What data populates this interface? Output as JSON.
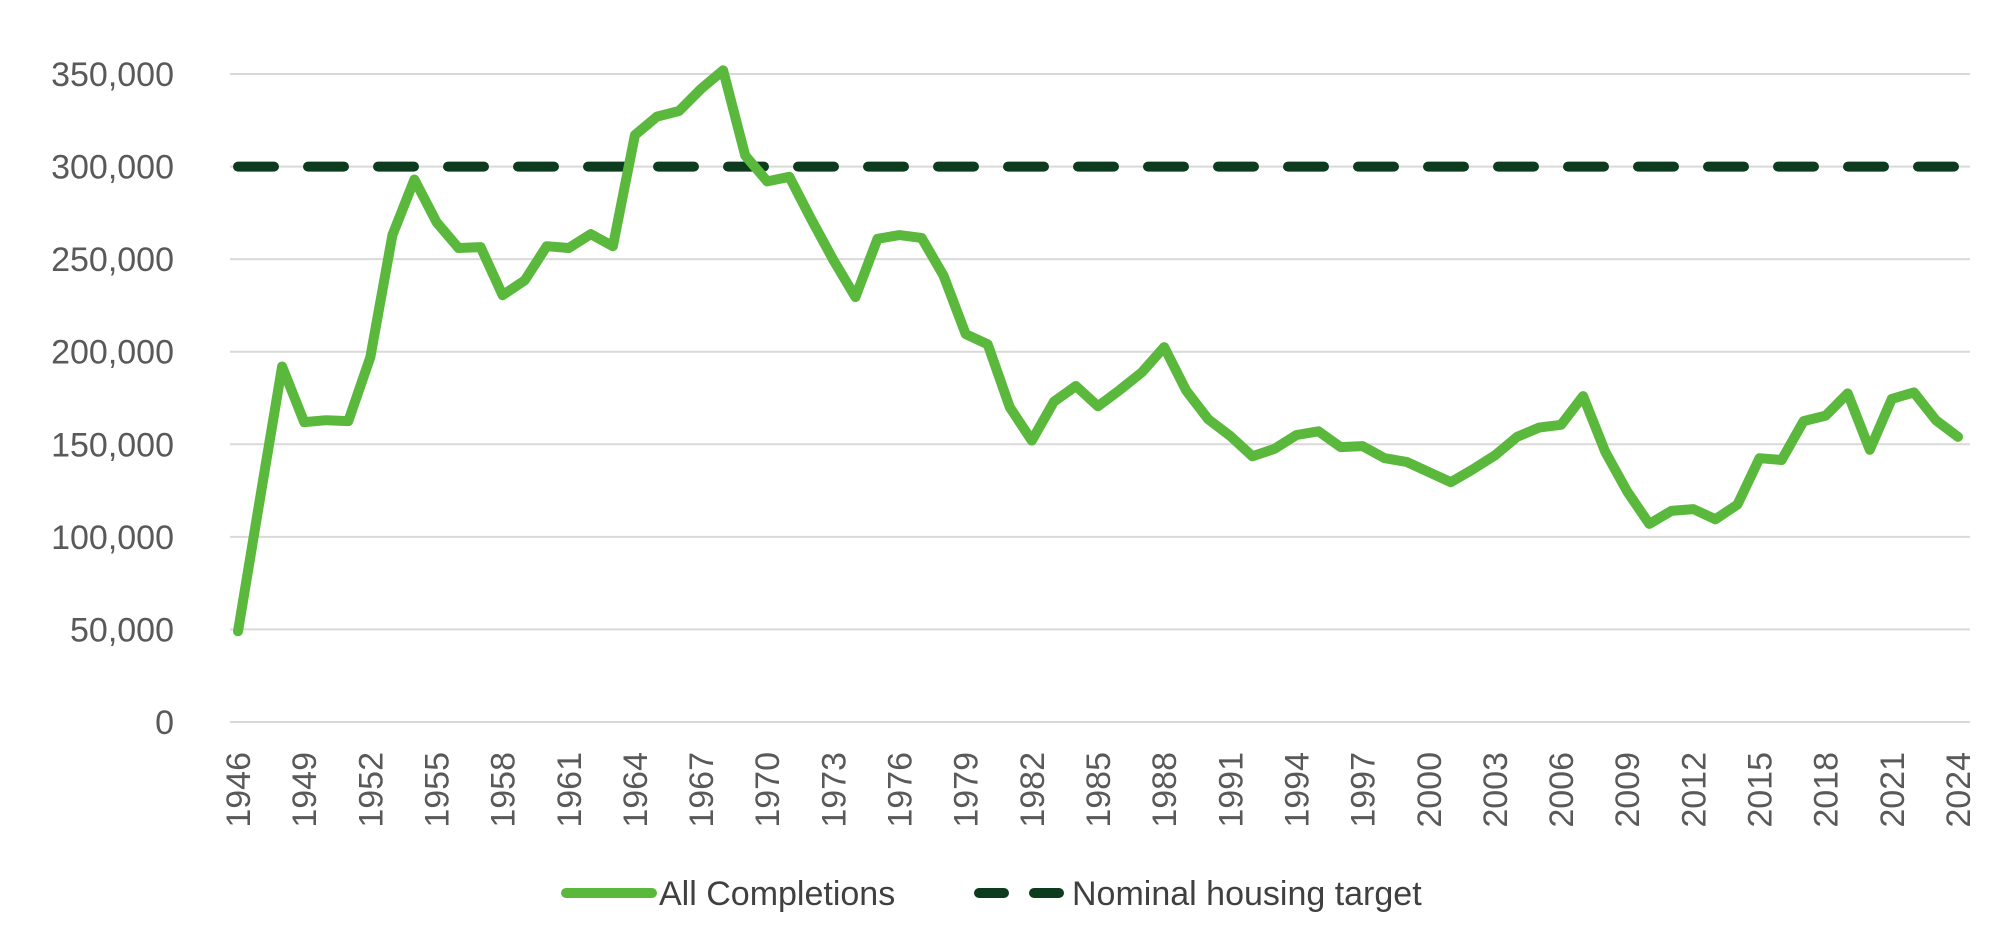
{
  "chart_data": {
    "type": "line",
    "title": "",
    "xlabel": "",
    "ylabel": "",
    "ylim": [
      0,
      350000
    ],
    "yticks": [
      "0",
      "50,000",
      "100,000",
      "150,000",
      "200,000",
      "250,000",
      "300,000",
      "350,000"
    ],
    "ytick_values": [
      0,
      50000,
      100000,
      150000,
      200000,
      250000,
      300000,
      350000
    ],
    "xlim": [
      1946,
      2024
    ],
    "xticks": [
      "1946",
      "1949",
      "1952",
      "1955",
      "1958",
      "1961",
      "1964",
      "1967",
      "1970",
      "1973",
      "1976",
      "1979",
      "1982",
      "1985",
      "1988",
      "1991",
      "1994",
      "1997",
      "2000",
      "2003",
      "2006",
      "2009",
      "2012",
      "2015",
      "2018",
      "2021",
      "2024"
    ],
    "grid": "horizontal",
    "legend_position": "bottom",
    "colors": {
      "completions": "#5ab93c",
      "target": "#0d3b1e",
      "grid": "#d9d9d9"
    },
    "series": [
      {
        "name": "All Completions",
        "style": "solid",
        "x": [
          1946,
          1947,
          1948,
          1949,
          1950,
          1951,
          1952,
          1953,
          1954,
          1955,
          1956,
          1957,
          1958,
          1959,
          1960,
          1961,
          1962,
          1963,
          1964,
          1965,
          1966,
          1967,
          1968,
          1969,
          1970,
          1971,
          1972,
          1973,
          1974,
          1975,
          1976,
          1977,
          1978,
          1979,
          1980,
          1981,
          1982,
          1983,
          1984,
          1985,
          1986,
          1987,
          1988,
          1989,
          1990,
          1991,
          1992,
          1993,
          1994,
          1995,
          1996,
          1997,
          1998,
          1999,
          2000,
          2001,
          2002,
          2003,
          2004,
          2005,
          2006,
          2007,
          2008,
          2009,
          2010,
          2011,
          2012,
          2013,
          2014,
          2015,
          2016,
          2017,
          2018,
          2019,
          2020,
          2021,
          2022,
          2023,
          2024
        ],
        "values": [
          49000,
          121000,
          192000,
          162000,
          163000,
          162500,
          197000,
          263000,
          293000,
          270000,
          256000,
          256500,
          230500,
          238500,
          257000,
          256000,
          263500,
          257000,
          317000,
          327000,
          330000,
          342000,
          352000,
          306000,
          292000,
          294500,
          271500,
          249500,
          229500,
          261000,
          263000,
          261500,
          241000,
          209500,
          204000,
          170000,
          152000,
          173000,
          181500,
          170500,
          179500,
          189000,
          202500,
          179000,
          163500,
          154500,
          143500,
          147500,
          155000,
          157000,
          148500,
          149000,
          142500,
          140500,
          135000,
          129500,
          136500,
          144000,
          154000,
          159000,
          160500,
          176000,
          146000,
          124500,
          107000,
          114000,
          115000,
          109500,
          117500,
          142500,
          141500,
          162500,
          165500,
          177500,
          147000,
          174500,
          178000,
          163000,
          154000
        ]
      },
      {
        "name": "Nominal housing target",
        "style": "dashed",
        "x": [
          1946,
          2024
        ],
        "values": [
          300000,
          300000
        ]
      }
    ]
  }
}
